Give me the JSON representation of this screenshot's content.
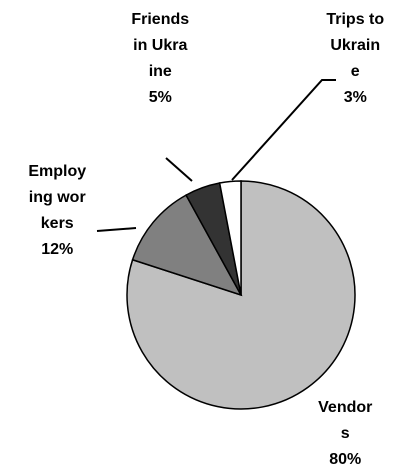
{
  "chart_data": {
    "type": "pie",
    "categories": [
      "Vendors",
      "Employing workers",
      "Friends in Ukraine",
      "Trips to Ukraine"
    ],
    "values": [
      80,
      12,
      5,
      3
    ],
    "value_labels": [
      "80%",
      "12%",
      "5%",
      "3%"
    ],
    "colors": [
      "#c0c0c0",
      "#808080",
      "#333333",
      "#ffffff"
    ]
  }
}
